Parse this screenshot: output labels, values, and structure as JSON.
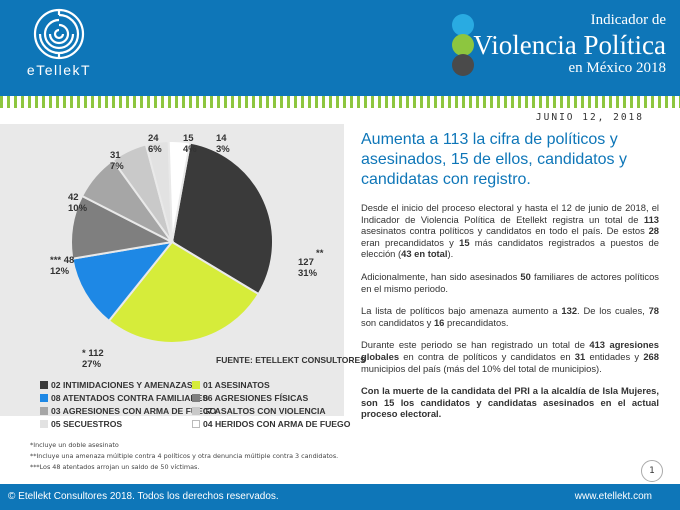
{
  "header": {
    "logo_text": "eTellekT",
    "title_line1": "Indicador de",
    "title_line2": "Violencia Política",
    "title_line3": "en México 2018",
    "dot_colors": [
      "#29abe2",
      "#8dc63f",
      "#4a4a4a"
    ],
    "bg_color": "#0e76b8"
  },
  "date": "JUNIO 12, 2018",
  "chart_data": {
    "type": "pie",
    "slices": [
      {
        "value": 127,
        "percent": "31%",
        "prefix": "",
        "marker": "**",
        "category": "02 INTIMIDACIONES Y AMENAZAS",
        "color": "#3a3a3a"
      },
      {
        "value": 112,
        "percent": "27%",
        "prefix": "*",
        "marker": "",
        "category": "08 ATENTADOS CONTRA FAMILIARES",
        "color": "#d6ec3a"
      },
      {
        "value": 48,
        "percent": "12%",
        "prefix": "***",
        "marker": "",
        "category": "03 AGRESIONES CON ARMA DE FUEGO",
        "color": "#1e88e5"
      },
      {
        "value": 42,
        "percent": "10%",
        "prefix": "",
        "marker": "",
        "category": "05 SECUESTROS",
        "color": "#7f7f7f"
      },
      {
        "value": 31,
        "percent": "7%",
        "prefix": "",
        "marker": "",
        "category": "01 ASESINATOS",
        "color": "#a6a6a6"
      },
      {
        "value": 24,
        "percent": "6%",
        "prefix": "",
        "marker": "",
        "category": "06 AGRESIONES FÍSICAS",
        "color": "#c9c9c9"
      },
      {
        "value": 15,
        "percent": "4%",
        "prefix": "",
        "marker": "",
        "category": "07 ASALTOS CON VIOLENCIA",
        "color": "#e2e2e2"
      },
      {
        "value": 14,
        "percent": "3%",
        "prefix": "",
        "marker": "",
        "category": "04 HERIDOS CON ARMA DE FUEGO",
        "color": "#ffffff"
      }
    ],
    "source": "FUENTE: ETELLEKT CONSULTORES"
  },
  "legend": [
    {
      "label": "02 INTIMIDACIONES Y AMENAZAS",
      "color": "#3a3a3a"
    },
    {
      "label": "01 ASESINATOS",
      "color": "#d6ec3a"
    },
    {
      "label": "08 ATENTADOS CONTRA FAMILIARES",
      "color": "#1e88e5"
    },
    {
      "label": "06 AGRESIONES FÍSICAS",
      "color": "#7f7f7f"
    },
    {
      "label": "03 AGRESIONES CON ARMA DE FUEGO",
      "color": "#a6a6a6"
    },
    {
      "label": "07 ASALTOS CON VIOLENCIA",
      "color": "#c9c9c9"
    },
    {
      "label": "05 SECUESTROS",
      "color": "#e2e2e2"
    },
    {
      "label": "04 HERIDOS CON ARMA DE FUEGO",
      "color": "#ffffff"
    }
  ],
  "notes": [
    "*Incluye un doble asesinato",
    "**Incluye una amenaza múltiple contra 4 políticos y otra denuncia múltiple contra 3 candidatos.",
    "***Los 48 atentados arrojan un saldo de 50 víctimas."
  ],
  "headline": "Aumenta a 113 la cifra de políticos y asesinados, 15 de ellos, candidatos y candidatas con registro.",
  "paragraphs": {
    "p1": [
      {
        "t": "Desde el inicio del proceso electoral y hasta el 12 de junio de 2018, el Indicador de Violencia Política de Etellekt registra un total de "
      },
      {
        "t": "113",
        "b": true
      },
      {
        "t": " asesinatos contra políticos y candidatos en todo el país.  De estos "
      },
      {
        "t": "28",
        "b": true
      },
      {
        "t": " eran precandidatos y "
      },
      {
        "t": "15",
        "b": true
      },
      {
        "t": " más candidatos registrados a puestos de elección ("
      },
      {
        "t": "43 en total",
        "b": true
      },
      {
        "t": ")."
      }
    ],
    "p2": [
      {
        "t": "Adicionalmente, han sido asesinados "
      },
      {
        "t": "50",
        "b": true
      },
      {
        "t": " familiares de actores políticos en el mismo periodo."
      }
    ],
    "p3": [
      {
        "t": "La lista de políticos bajo amenaza aumento a "
      },
      {
        "t": "132",
        "b": true
      },
      {
        "t": ".  De los cuales, "
      },
      {
        "t": "78",
        "b": true
      },
      {
        "t": " son candidatos y "
      },
      {
        "t": "16",
        "b": true
      },
      {
        "t": " precandidatos."
      }
    ],
    "p4": [
      {
        "t": "Durante este periodo se han registrado un total de "
      },
      {
        "t": "413 agresiones globales",
        "b": true
      },
      {
        "t": " en contra de políticos y candidatos en "
      },
      {
        "t": "31",
        "b": true
      },
      {
        "t": " entidades y "
      },
      {
        "t": "268",
        "b": true
      },
      {
        "t": " municipios del país (más del 10% del total de municipios)."
      }
    ],
    "p5": [
      {
        "t": "Con la muerte de la candidata del PRI a la alcaldía de Isla Mujeres,  son 15 los candidatos y candidatas asesinados en el actual proceso electoral.",
        "b": true
      }
    ]
  },
  "page_number": "1",
  "footer": {
    "copyright": "© Etellekt Consultores 2018. Todos los derechos reservados.",
    "website": "www.etellekt.com"
  }
}
